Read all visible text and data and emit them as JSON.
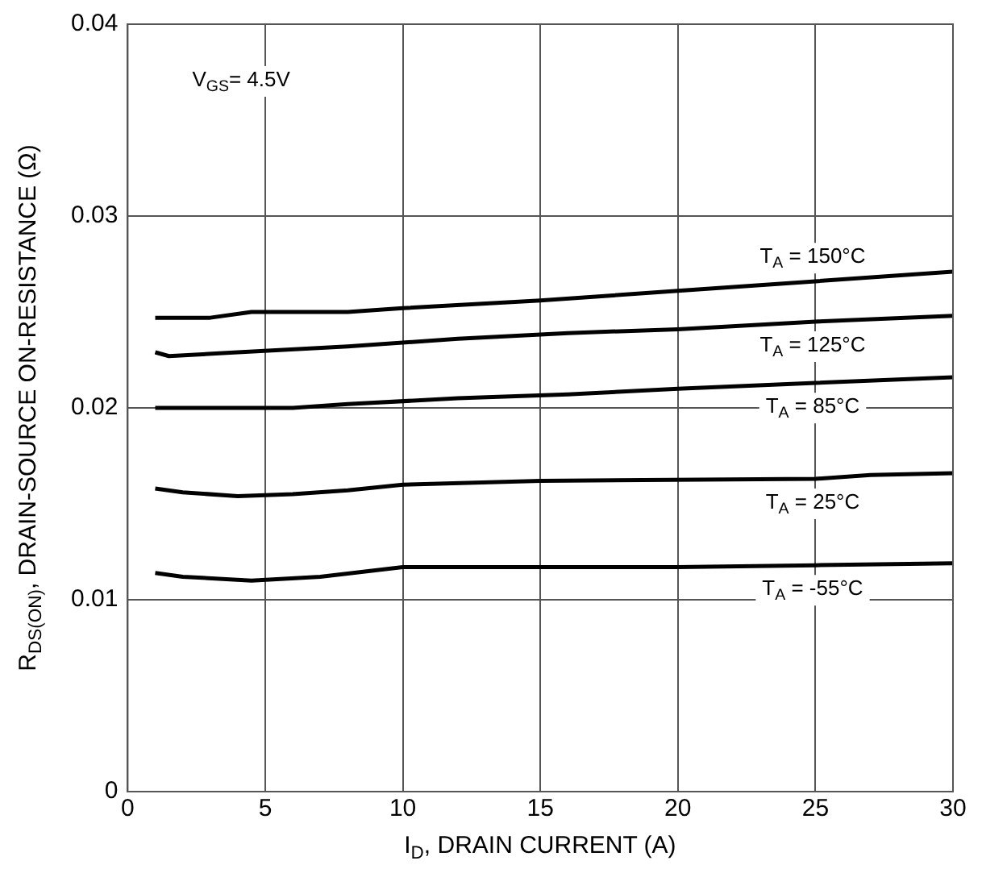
{
  "chart_data": {
    "type": "line",
    "xlabel": "I$_{D}$, DRAIN CURRENT (A)",
    "ylabel": "R$_{DS(ON)}$, DRAIN-SOURCE ON-RESISTANCE (Ω)",
    "xlim": [
      0,
      30
    ],
    "xticks": [
      0,
      5,
      10,
      15,
      20,
      25,
      30
    ],
    "ylim": [
      0,
      0.04
    ],
    "yticks": [
      0,
      0.01,
      0.02,
      0.03,
      0.04
    ],
    "grid": true,
    "legend": false,
    "marker": "none",
    "line_style": "solid",
    "series": [
      {
        "name": "T$_{A}$ = 150°C",
        "color": "#000000",
        "x": [
          1,
          3,
          4.5,
          8,
          10,
          15,
          20,
          25,
          30
        ],
        "values": [
          0.0247,
          0.0247,
          0.025,
          0.025,
          0.0252,
          0.0256,
          0.0261,
          0.0266,
          0.0271
        ]
      },
      {
        "name": "T$_{A}$ = 125°C",
        "color": "#000000",
        "x": [
          1,
          1.5,
          4,
          8,
          12,
          16,
          20,
          25,
          30
        ],
        "values": [
          0.0229,
          0.0227,
          0.0229,
          0.0232,
          0.0236,
          0.0239,
          0.0241,
          0.0245,
          0.0248
        ]
      },
      {
        "name": "T$_{A}$ = 85°C",
        "color": "#000000",
        "x": [
          1,
          6,
          8,
          12,
          16,
          20,
          25,
          30
        ],
        "values": [
          0.02,
          0.02,
          0.0202,
          0.0205,
          0.0207,
          0.021,
          0.0213,
          0.0216
        ]
      },
      {
        "name": "T$_{A}$ = 25°C",
        "color": "#000000",
        "x": [
          1,
          2,
          4,
          6,
          8,
          10,
          15,
          25,
          27,
          30
        ],
        "values": [
          0.0158,
          0.0156,
          0.0154,
          0.0155,
          0.0157,
          0.016,
          0.0162,
          0.0163,
          0.0165,
          0.0166
        ]
      },
      {
        "name": "T$_{A}$ = -55°C",
        "color": "#000000",
        "x": [
          1,
          2,
          4.5,
          7,
          10,
          20,
          25,
          30
        ],
        "values": [
          0.0114,
          0.0112,
          0.011,
          0.0112,
          0.0117,
          0.0117,
          0.0118,
          0.0119
        ]
      }
    ],
    "annotations": [
      "V$_{GS}$= 4.5V"
    ]
  }
}
